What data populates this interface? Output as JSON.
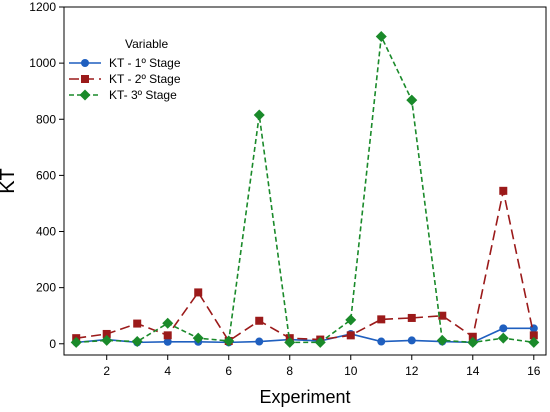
{
  "chart_data": {
    "type": "line",
    "title": "",
    "xlabel": "Experiment",
    "ylabel": "KT",
    "xlim": [
      0.6,
      16.4
    ],
    "ylim": [
      -40,
      1200
    ],
    "x_ticks": [
      2,
      4,
      6,
      8,
      10,
      12,
      14,
      16
    ],
    "y_ticks": [
      0,
      200,
      400,
      600,
      800,
      1000,
      1200
    ],
    "grid": false,
    "legend": {
      "title": "Variable",
      "position": "top-left",
      "entries": [
        "KT - 1º Stage",
        "KT - 2º Stage",
        "KT- 3º Stage"
      ]
    },
    "x": [
      1,
      2,
      3,
      4,
      5,
      6,
      7,
      8,
      9,
      10,
      11,
      12,
      13,
      14,
      15,
      16
    ],
    "series": [
      {
        "name": "KT - 1º Stage",
        "color": "#1f5fbf",
        "marker": "circle",
        "dash": "solid",
        "values": [
          5,
          15,
          5,
          7,
          7,
          5,
          8,
          15,
          10,
          35,
          8,
          12,
          8,
          5,
          55,
          55
        ]
      },
      {
        "name": "KT - 2º Stage",
        "color": "#9b1a1a",
        "marker": "square",
        "dash": "long-dash",
        "values": [
          20,
          35,
          72,
          30,
          183,
          10,
          82,
          20,
          15,
          30,
          87,
          92,
          100,
          25,
          545,
          30
        ]
      },
      {
        "name": "KT- 3º Stage",
        "color": "#1a8a2a",
        "marker": "diamond",
        "dash": "short-dash",
        "values": [
          5,
          12,
          8,
          73,
          20,
          10,
          815,
          5,
          5,
          85,
          1095,
          868,
          12,
          5,
          20,
          5
        ]
      }
    ]
  }
}
